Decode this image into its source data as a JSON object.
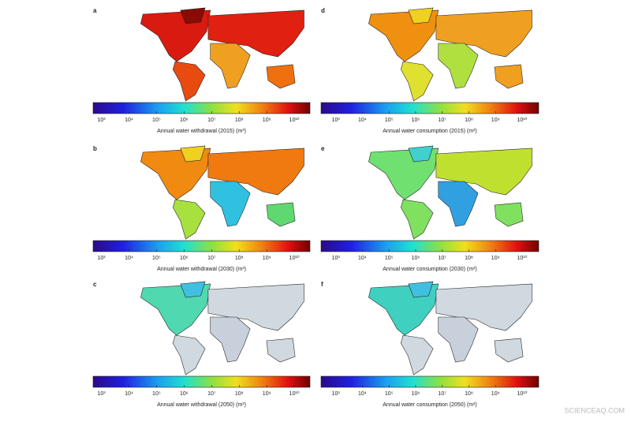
{
  "panels": [
    {
      "letter": "a",
      "caption": "Annual water withdrawal (2015) (m³)",
      "scale": "log",
      "range": [
        500,
        37000000000
      ],
      "ticks": [
        {
          "value": 1000,
          "label": "10³"
        },
        {
          "value": 10000,
          "label": "10⁴"
        },
        {
          "value": 100000,
          "label": "10⁵"
        },
        {
          "value": 1000000,
          "label": "10⁶"
        },
        {
          "value": 10000000,
          "label": "10⁷"
        },
        {
          "value": 100000000,
          "label": "10⁸"
        },
        {
          "value": 1000000000,
          "label": "10⁹"
        },
        {
          "value": 10000000000,
          "label": "10¹⁰"
        }
      ]
    },
    {
      "letter": "b",
      "caption": "Annual water withdrawal (2030) (m³)",
      "scale": "log",
      "range": [
        500,
        37000000000
      ],
      "ticks": [
        {
          "value": 1000,
          "label": "10³"
        },
        {
          "value": 10000,
          "label": "10⁴"
        },
        {
          "value": 100000,
          "label": "10⁵"
        },
        {
          "value": 1000000,
          "label": "10⁶"
        },
        {
          "value": 10000000,
          "label": "10⁷"
        },
        {
          "value": 100000000,
          "label": "10⁸"
        },
        {
          "value": 1000000000,
          "label": "10⁹"
        },
        {
          "value": 10000000000,
          "label": "10¹⁰"
        }
      ]
    },
    {
      "letter": "c",
      "caption": "Annual water withdrawal (2050) (m³)",
      "scale": "log",
      "range": [
        500,
        37000000000
      ],
      "ticks": [
        {
          "value": 1000,
          "label": "10³"
        },
        {
          "value": 10000,
          "label": "10⁴"
        },
        {
          "value": 100000,
          "label": "10⁵"
        },
        {
          "value": 1000000,
          "label": "10⁶"
        },
        {
          "value": 10000000,
          "label": "10⁷"
        },
        {
          "value": 100000000,
          "label": "10⁸"
        },
        {
          "value": 1000000000,
          "label": "10⁹"
        },
        {
          "value": 10000000000,
          "label": "10¹⁰"
        }
      ]
    },
    {
      "letter": "d",
      "caption": "Annual water consumption (2015) (m³)",
      "scale": "log",
      "range": [
        280,
        42000000000
      ],
      "ticks": [
        {
          "value": 1000,
          "label": "10³"
        },
        {
          "value": 10000,
          "label": "10⁴"
        },
        {
          "value": 100000,
          "label": "10⁵"
        },
        {
          "value": 1000000,
          "label": "10⁶"
        },
        {
          "value": 10000000,
          "label": "10⁷"
        },
        {
          "value": 100000000,
          "label": "10⁸"
        },
        {
          "value": 1000000000,
          "label": "10⁹"
        },
        {
          "value": 10000000000,
          "label": "10¹⁰"
        }
      ]
    },
    {
      "letter": "e",
      "caption": "Annual water consumption (2030) (m³)",
      "scale": "log",
      "range": [
        280,
        42000000000
      ],
      "ticks": [
        {
          "value": 1000,
          "label": "10³"
        },
        {
          "value": 10000,
          "label": "10⁴"
        },
        {
          "value": 100000,
          "label": "10⁵"
        },
        {
          "value": 1000000,
          "label": "10⁶"
        },
        {
          "value": 10000000,
          "label": "10⁷"
        },
        {
          "value": 100000000,
          "label": "10⁸"
        },
        {
          "value": 1000000000,
          "label": "10⁹"
        },
        {
          "value": 10000000000,
          "label": "10¹⁰"
        }
      ]
    },
    {
      "letter": "f",
      "caption": "Annual water consumption (2050) (m³)",
      "scale": "log",
      "range": [
        280,
        42000000000
      ],
      "ticks": [
        {
          "value": 1000,
          "label": "10³"
        },
        {
          "value": 10000,
          "label": "10⁴"
        },
        {
          "value": 100000,
          "label": "10⁵"
        },
        {
          "value": 1000000,
          "label": "10⁶"
        },
        {
          "value": 10000000,
          "label": "10⁷"
        },
        {
          "value": 100000000,
          "label": "10⁸"
        },
        {
          "value": 1000000000,
          "label": "10⁹"
        },
        {
          "value": 10000000000,
          "label": "10¹⁰"
        }
      ]
    }
  ],
  "watermark": "SCIENCEAQ.COM"
}
